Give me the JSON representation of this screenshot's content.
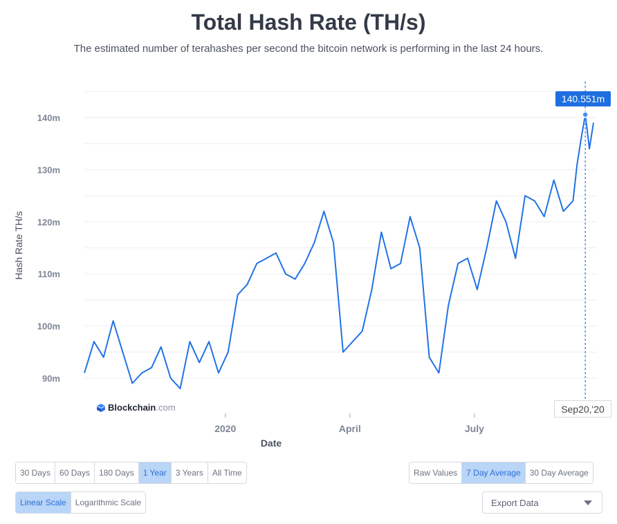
{
  "header": {
    "title": "Total Hash Rate (TH/s)",
    "subtitle": "The estimated number of terahashes per second the bitcoin network is performing in the last 24 hours."
  },
  "chart_data": {
    "type": "line",
    "title": "Total Hash Rate (TH/s)",
    "xlabel": "Date",
    "ylabel": "Hash Rate TH/s",
    "ylim": [
      85,
      148
    ],
    "yticks": [
      90,
      100,
      110,
      120,
      130,
      140
    ],
    "ytick_labels": [
      "90m",
      "100m",
      "110m",
      "120m",
      "130m",
      "140m"
    ],
    "xticks": [
      "2020-01-01",
      "2020-04-01",
      "2020-07-01"
    ],
    "xtick_labels": [
      "2020",
      "April",
      "July"
    ],
    "xlim": [
      "2019-09-20",
      "2020-09-28"
    ],
    "grid": "horizontal",
    "series": [
      {
        "color": "#2172e5",
        "x": [
          "2019-09-20",
          "2019-09-27",
          "2019-10-04",
          "2019-10-11",
          "2019-10-18",
          "2019-10-25",
          "2019-11-01",
          "2019-11-08",
          "2019-11-15",
          "2019-11-22",
          "2019-11-29",
          "2019-12-06",
          "2019-12-13",
          "2019-12-20",
          "2019-12-27",
          "2020-01-03",
          "2020-01-10",
          "2020-01-17",
          "2020-01-24",
          "2020-01-31",
          "2020-02-07",
          "2020-02-14",
          "2020-02-21",
          "2020-02-28",
          "2020-03-06",
          "2020-03-13",
          "2020-03-20",
          "2020-03-27",
          "2020-04-03",
          "2020-04-10",
          "2020-04-17",
          "2020-04-24",
          "2020-05-01",
          "2020-05-08",
          "2020-05-15",
          "2020-05-22",
          "2020-05-29",
          "2020-06-05",
          "2020-06-12",
          "2020-06-19",
          "2020-06-26",
          "2020-07-03",
          "2020-07-10",
          "2020-07-17",
          "2020-07-24",
          "2020-07-31",
          "2020-08-07",
          "2020-08-14",
          "2020-08-21",
          "2020-08-28",
          "2020-09-04",
          "2020-09-11",
          "2020-09-14",
          "2020-09-17",
          "2020-09-20",
          "2020-09-23",
          "2020-09-26"
        ],
        "values": [
          91,
          97,
          94,
          101,
          95,
          89,
          91,
          92,
          96,
          90,
          88,
          97,
          93,
          97,
          91,
          95,
          106,
          108,
          112,
          113,
          114,
          110,
          109,
          112,
          116,
          122,
          116,
          95,
          97,
          99,
          107,
          118,
          111,
          112,
          121,
          115,
          94,
          91,
          104,
          112,
          113,
          107,
          115,
          124,
          120,
          113,
          125,
          124,
          121,
          128,
          122,
          124,
          131,
          136,
          140.551,
          134,
          139
        ],
        "annotation_value_label": "140.551m",
        "annotation_date_label": "Sep20,'20"
      }
    ]
  },
  "branding": {
    "name": "Blockchain",
    "suffix": ".com"
  },
  "controls": {
    "ranges": [
      {
        "label": "30 Days",
        "active": false
      },
      {
        "label": "60 Days",
        "active": false
      },
      {
        "label": "180 Days",
        "active": false
      },
      {
        "label": "1 Year",
        "active": true
      },
      {
        "label": "3 Years",
        "active": false
      },
      {
        "label": "All Time",
        "active": false
      }
    ],
    "averages": [
      {
        "label": "Raw Values",
        "active": false
      },
      {
        "label": "7 Day Average",
        "active": true
      },
      {
        "label": "30 Day Average",
        "active": false
      }
    ],
    "scales": [
      {
        "label": "Linear Scale",
        "active": true
      },
      {
        "label": "Logarithmic Scale",
        "active": false
      }
    ],
    "export_label": "Export Data"
  },
  "colors": {
    "line": "#2172e5",
    "accent": "#1e6fe0",
    "active_bg": "#b9d5f7"
  }
}
